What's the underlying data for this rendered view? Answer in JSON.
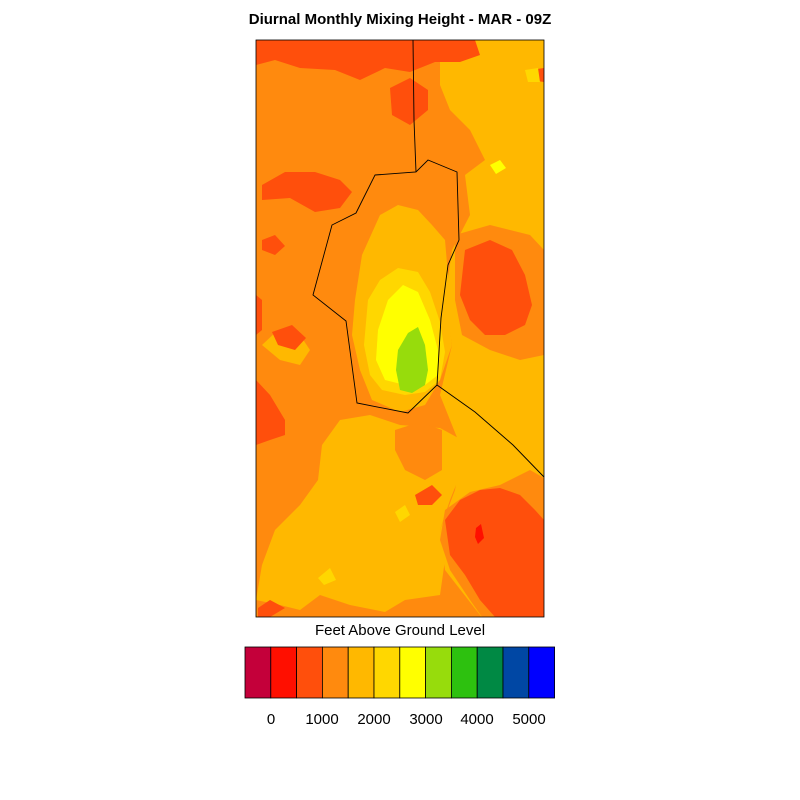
{
  "title": "Diurnal Monthly Mixing Height - MAR - 09Z",
  "colorbar": {
    "label": "Feet Above Ground Level",
    "colors": [
      "#c4003a",
      "#ff0f00",
      "#ff4f0c",
      "#ff8a0e",
      "#ffb800",
      "#ffd700",
      "#ffff00",
      "#97dc0c",
      "#2dc10f",
      "#008944",
      "#0047a4",
      "#0000ff"
    ],
    "tick_labels": [
      "0",
      "1000",
      "2000",
      "3000",
      "4000",
      "5000"
    ]
  },
  "chart_data": {
    "type": "heatmap",
    "title": "Diurnal Monthly Mixing Height - MAR - 09Z",
    "colorbar_label": "Feet Above Ground Level",
    "color_scale_ticks": [
      0,
      1000,
      2000,
      3000,
      4000,
      5000
    ],
    "level_step": 500,
    "levels_present_ft": [
      500,
      1000,
      1500,
      2000,
      2500,
      3000,
      3500
    ]
  }
}
